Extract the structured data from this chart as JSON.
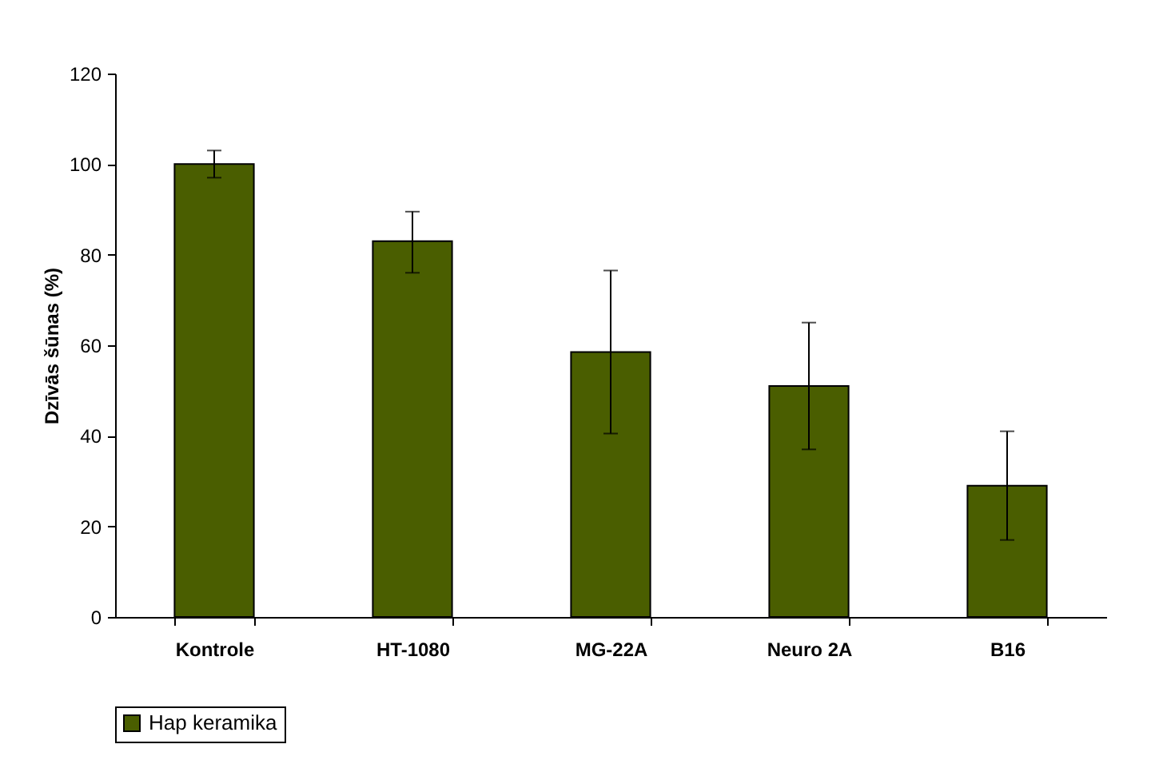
{
  "chart_data": {
    "type": "bar",
    "ylabel": "Dzīvās šūnas (%)",
    "categories": [
      "Kontrole",
      "HT-1080",
      "MG-22A",
      "Neuro 2A",
      "B16"
    ],
    "series": [
      {
        "name": "Hap keramika",
        "color": "#4a5e00",
        "values": [
          100,
          83,
          58.5,
          51,
          29
        ],
        "errors": [
          [
            97,
            103
          ],
          [
            76,
            89.5
          ],
          [
            40.5,
            76.5
          ],
          [
            37,
            65
          ],
          [
            17,
            41
          ]
        ]
      }
    ],
    "ylim": [
      0,
      120
    ],
    "yticks": [
      0,
      20,
      40,
      60,
      80,
      100,
      120
    ],
    "grid": false,
    "legend": "bottom"
  }
}
